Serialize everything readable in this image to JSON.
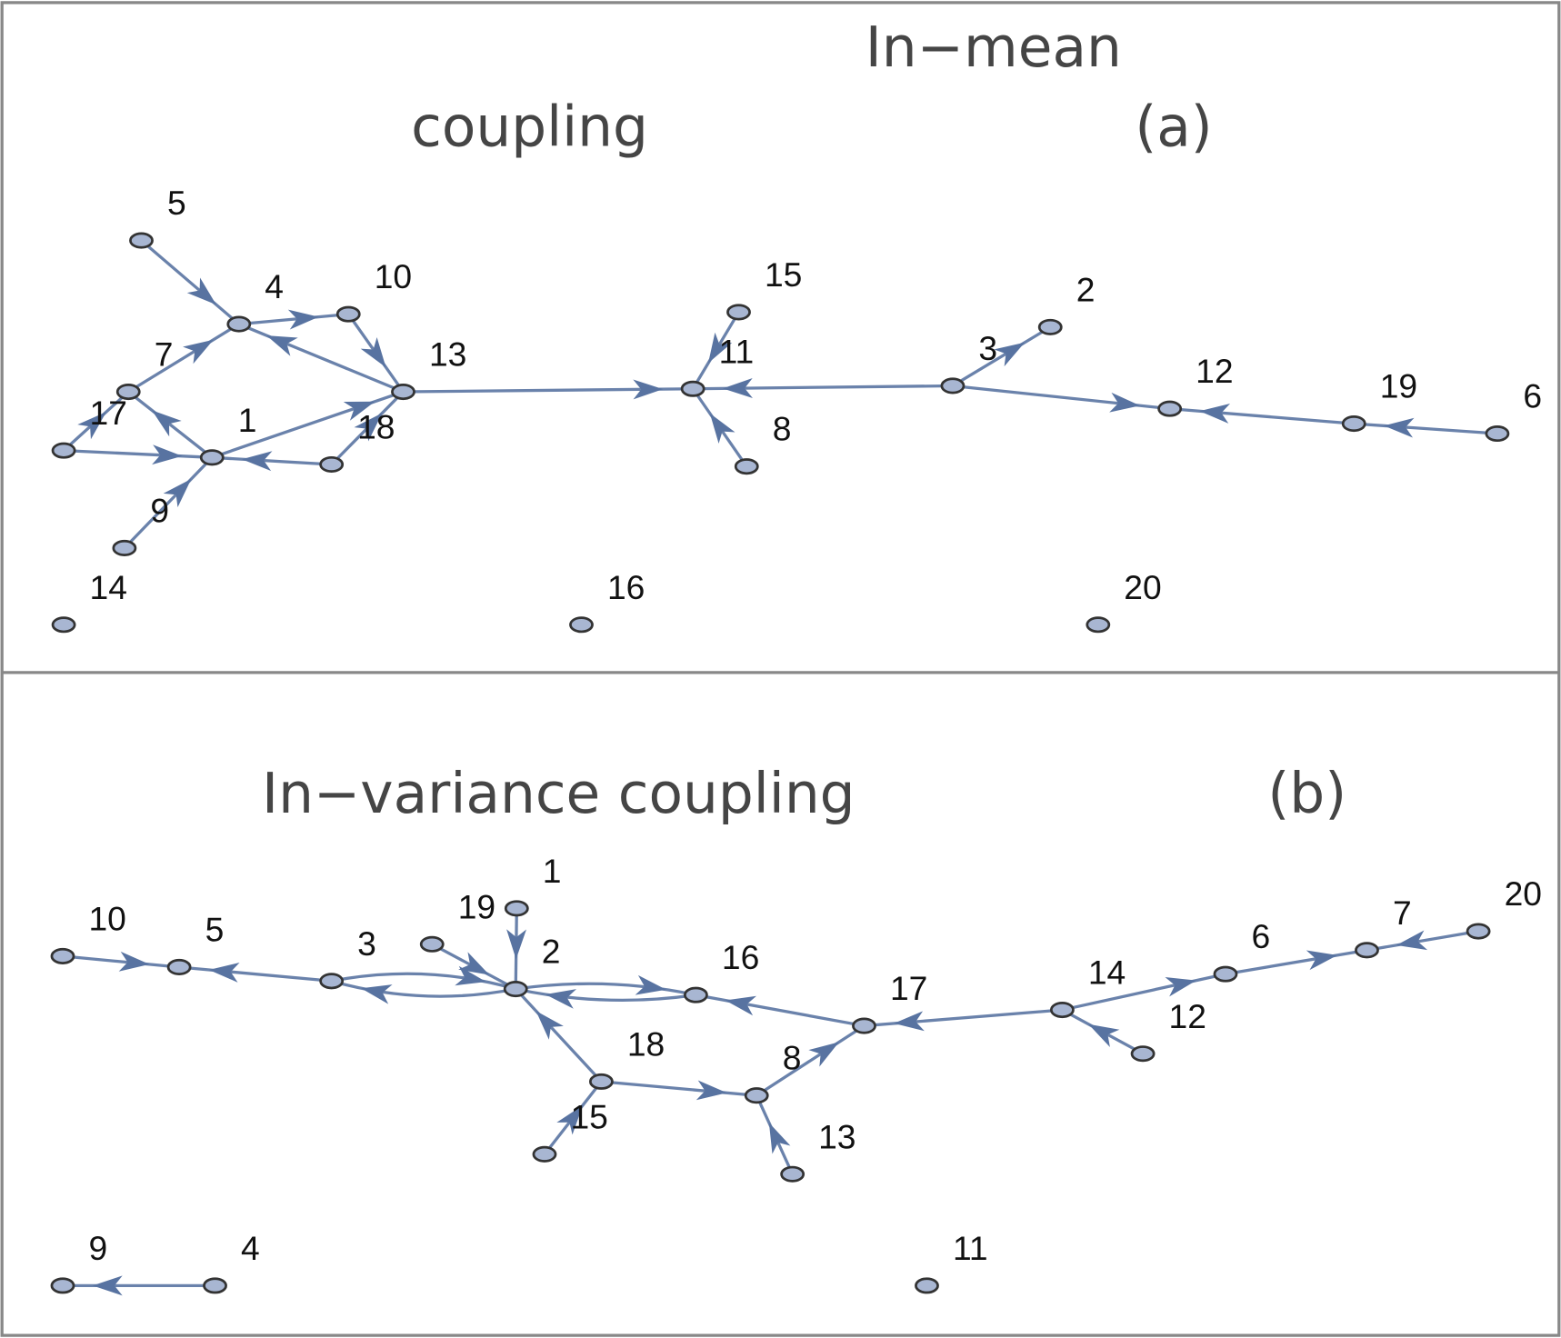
{
  "panels": [
    {
      "title": [
        "In−mean",
        "coupling"
      ],
      "tag": "(a)",
      "nodes": [
        "1",
        "2",
        "3",
        "4",
        "5",
        "6",
        "7",
        "8",
        "9",
        "10",
        "11",
        "12",
        "13",
        "14",
        "15",
        "16",
        "17",
        "18",
        "19",
        "20"
      ]
    },
    {
      "title": [
        "In−variance coupling"
      ],
      "tag": "(b)",
      "nodes": [
        "1",
        "2",
        "3",
        "4",
        "5",
        "6",
        "7",
        "8",
        "9",
        "10",
        "11",
        "12",
        "13",
        "14",
        "15",
        "16",
        "17",
        "18",
        "19",
        "20"
      ]
    }
  ]
}
